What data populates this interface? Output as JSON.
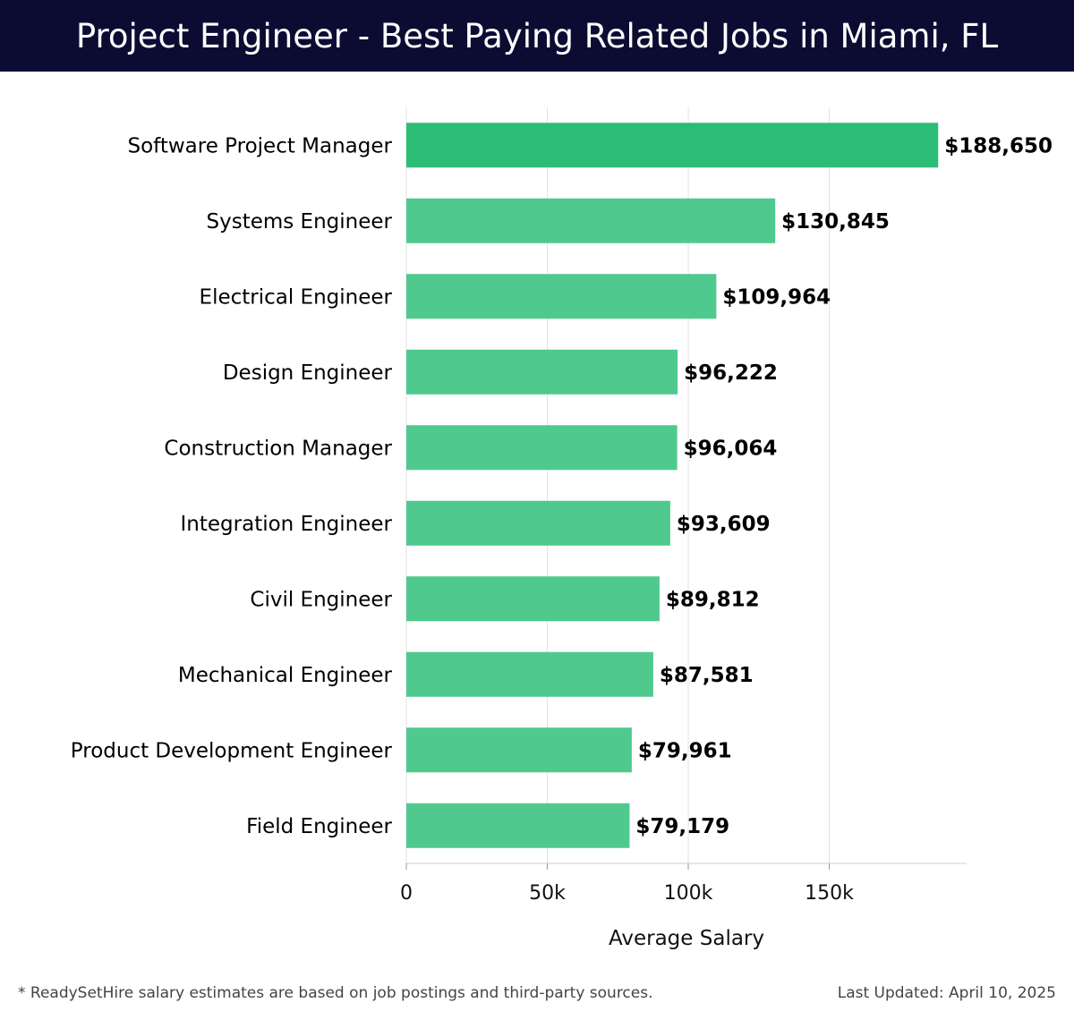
{
  "header": {
    "title": "Project Engineer - Best Paying Related Jobs in Miami, FL"
  },
  "chart_data": {
    "type": "bar",
    "orientation": "horizontal",
    "title": "Project Engineer - Best Paying Related Jobs in Miami, FL",
    "xlabel": "Average Salary",
    "ylabel": "",
    "xlim": [
      0,
      198000
    ],
    "xticks": [
      0,
      50000,
      100000,
      150000
    ],
    "xtick_labels": [
      "0",
      "50k",
      "100k",
      "150k"
    ],
    "grid": true,
    "categories": [
      "Software Project Manager",
      "Systems Engineer",
      "Electrical Engineer",
      "Design Engineer",
      "Construction Manager",
      "Integration Engineer",
      "Civil Engineer",
      "Mechanical Engineer",
      "Product Development Engineer",
      "Field Engineer"
    ],
    "values": [
      188650,
      130845,
      109964,
      96222,
      96064,
      93609,
      89812,
      87581,
      79961,
      79179
    ],
    "value_labels": [
      "$188,650",
      "$130,845",
      "$109,964",
      "$96,222",
      "$96,064",
      "$93,609",
      "$89,812",
      "$87,581",
      "$79,961",
      "$79,179"
    ],
    "colors": {
      "top_bar": "#2bbd76",
      "bar": "#4fc98e",
      "grid": "#e3e3e3",
      "axis": "#cccccc",
      "label": "#000000"
    }
  },
  "footer": {
    "note": "* ReadySetHire salary estimates are based on job postings and third-party sources.",
    "updated": "Last Updated: April 10, 2025"
  }
}
